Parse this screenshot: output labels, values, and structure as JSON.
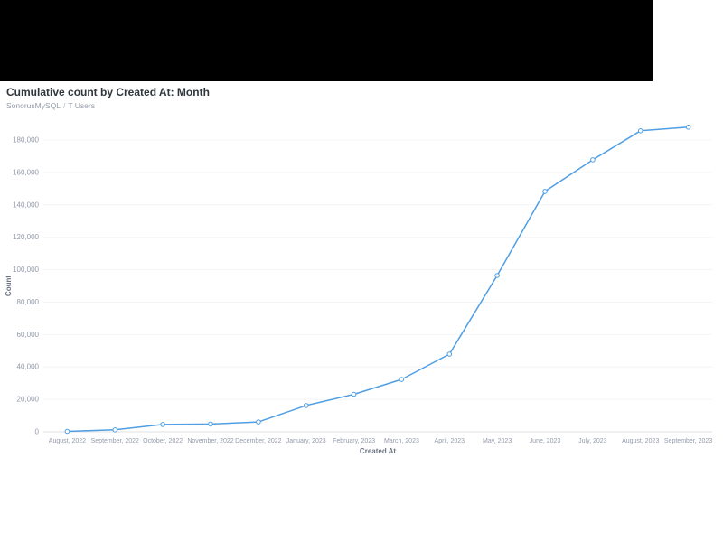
{
  "window": {
    "top_bar_color": "#000000"
  },
  "header": {
    "title": "Cumulative count by Created At: Month",
    "breadcrumb": {
      "database": "SonorusMySQL",
      "separator": "/",
      "table": "T Users"
    }
  },
  "chart_data": {
    "type": "line",
    "title": "Cumulative count by Created At: Month",
    "xlabel": "Created At",
    "ylabel": "Count",
    "categories": [
      "August, 2022",
      "September, 2022",
      "October, 2022",
      "November, 2022",
      "December, 2022",
      "January, 2023",
      "February, 2023",
      "March, 2023",
      "April, 2023",
      "May, 2023",
      "June, 2023",
      "July, 2023",
      "August, 2023",
      "September, 2023"
    ],
    "values": [
      300,
      1200,
      4500,
      4800,
      6100,
      16200,
      23100,
      32300,
      47900,
      96400,
      148300,
      167800,
      185700,
      187900
    ],
    "ylim": [
      0,
      180000
    ],
    "yticks": [
      0,
      20000,
      40000,
      60000,
      80000,
      100000,
      120000,
      140000,
      160000,
      180000
    ],
    "grid": true,
    "legend": "none",
    "line_color": "#509ee3",
    "point_fill": "#ffffff",
    "axis_text_color": "#949aab",
    "axis_label_color": "#6c7381",
    "gridline_color": "#f4f4f5",
    "baseline_color": "#e0e0e0"
  }
}
